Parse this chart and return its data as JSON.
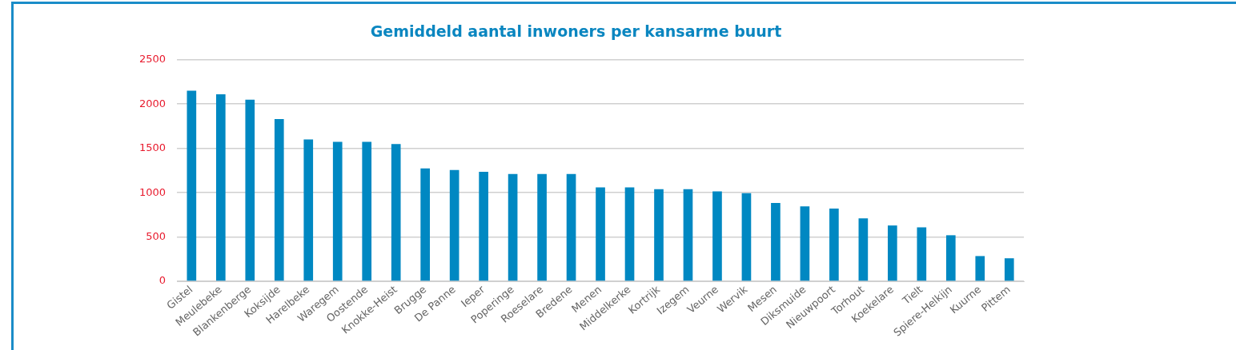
{
  "chart_data": {
    "type": "bar",
    "title": "Gemiddeld aantal inwoners per kansarme buurt",
    "categories": [
      "Gistel",
      "Meulebeke",
      "Blankenberge",
      "Koksijde",
      "Harelbeke",
      "Waregem",
      "Oostende",
      "Knokke-Heist",
      "Brugge",
      "De Panne",
      "Ieper",
      "Poperinge",
      "Roeselare",
      "Bredene",
      "Menen",
      "Middelkerke",
      "Kortrijk",
      "Izegem",
      "Veurne",
      "Wervik",
      "Mesen",
      "Diksmuide",
      "Nieuwpoort",
      "Torhout",
      "Koekelare",
      "Tielt",
      "Spiere-Helkijn",
      "Kuurne",
      "Pittem"
    ],
    "values": [
      2150,
      2110,
      2050,
      1830,
      1600,
      1575,
      1575,
      1550,
      1275,
      1255,
      1235,
      1210,
      1210,
      1210,
      1060,
      1060,
      1040,
      1040,
      1015,
      995,
      885,
      845,
      820,
      710,
      630,
      610,
      520,
      285,
      260
    ],
    "color": "#0088c2",
    "ylim": [
      0,
      2500
    ],
    "yticks": [
      0,
      500,
      1000,
      1500,
      2000,
      2500
    ],
    "grid": "y",
    "legend": false
  }
}
